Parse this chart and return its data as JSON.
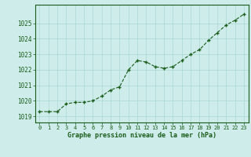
{
  "x": [
    0,
    1,
    2,
    3,
    4,
    5,
    6,
    7,
    8,
    9,
    10,
    11,
    12,
    13,
    14,
    15,
    16,
    17,
    18,
    19,
    20,
    21,
    22,
    23
  ],
  "y": [
    1019.3,
    1019.3,
    1019.3,
    1019.8,
    1019.9,
    1019.9,
    1020.0,
    1020.3,
    1020.7,
    1020.9,
    1022.0,
    1022.6,
    1022.5,
    1022.2,
    1022.1,
    1022.2,
    1022.6,
    1023.0,
    1023.3,
    1023.9,
    1024.4,
    1024.9,
    1025.2,
    1025.6
  ],
  "ylim": [
    1018.6,
    1026.2
  ],
  "yticks": [
    1019,
    1020,
    1021,
    1022,
    1023,
    1024,
    1025
  ],
  "xticks": [
    0,
    1,
    2,
    3,
    4,
    5,
    6,
    7,
    8,
    9,
    10,
    11,
    12,
    13,
    14,
    15,
    16,
    17,
    18,
    19,
    20,
    21,
    22,
    23
  ],
  "xlabel": "Graphe pression niveau de la mer (hPa)",
  "line_color": "#1a5c1a",
  "marker": "+",
  "bg_color": "#cdecea",
  "grid_color": "#aad8d4",
  "tick_label_color": "#1a5c1a",
  "xlabel_color": "#1a5c1a"
}
